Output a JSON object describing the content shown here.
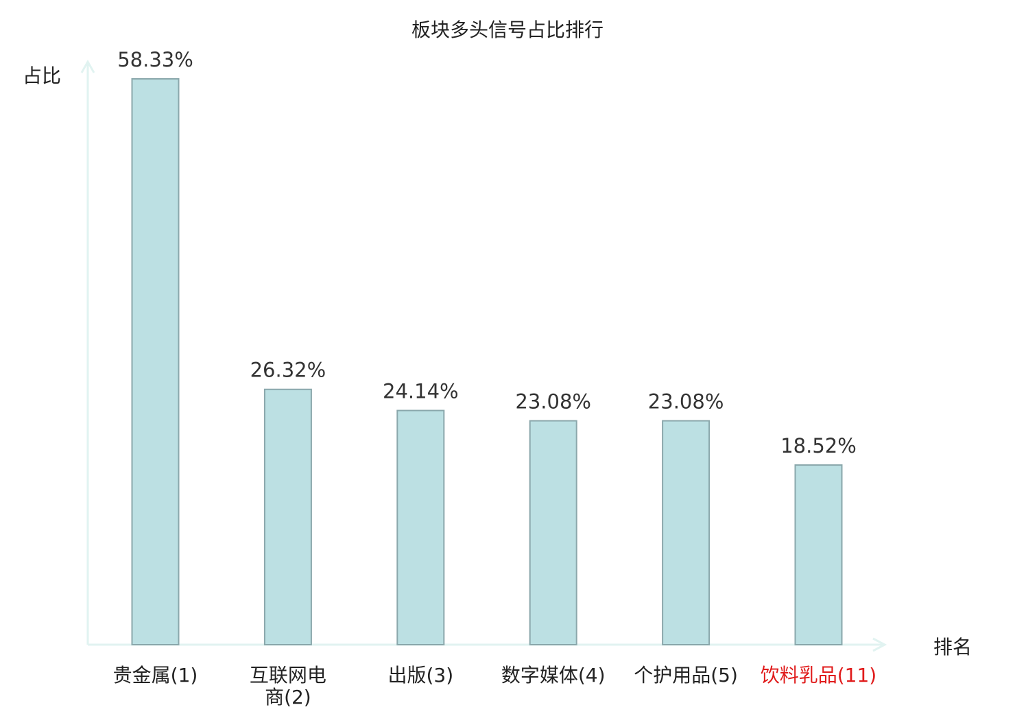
{
  "chart_data": {
    "type": "bar",
    "title": "板块多头信号占比排行",
    "ylabel": "占比",
    "xlabel": "排名",
    "ylim": [
      0,
      60
    ],
    "grid": false,
    "categories": [
      {
        "lines": [
          "贵金属(1)"
        ],
        "highlight": false
      },
      {
        "lines": [
          "互联网电",
          "商(2)"
        ],
        "highlight": false
      },
      {
        "lines": [
          "出版(3)"
        ],
        "highlight": false
      },
      {
        "lines": [
          "数字媒体(4)"
        ],
        "highlight": false
      },
      {
        "lines": [
          "个护用品(5)"
        ],
        "highlight": false
      },
      {
        "lines": [
          "饮料乳品(11)"
        ],
        "highlight": true
      }
    ],
    "values": [
      58.33,
      26.32,
      24.14,
      23.08,
      23.08,
      18.52
    ],
    "value_labels": [
      "58.33%",
      "26.32%",
      "24.14%",
      "23.08%",
      "23.08%",
      "18.52%"
    ]
  },
  "colors": {
    "bar_fill": "#bce0e3",
    "bar_stroke": "#8aa7ab",
    "axis": "#e1f3f1",
    "text": "#333333",
    "label_text": "#222222",
    "highlight": "#e01b1b"
  }
}
